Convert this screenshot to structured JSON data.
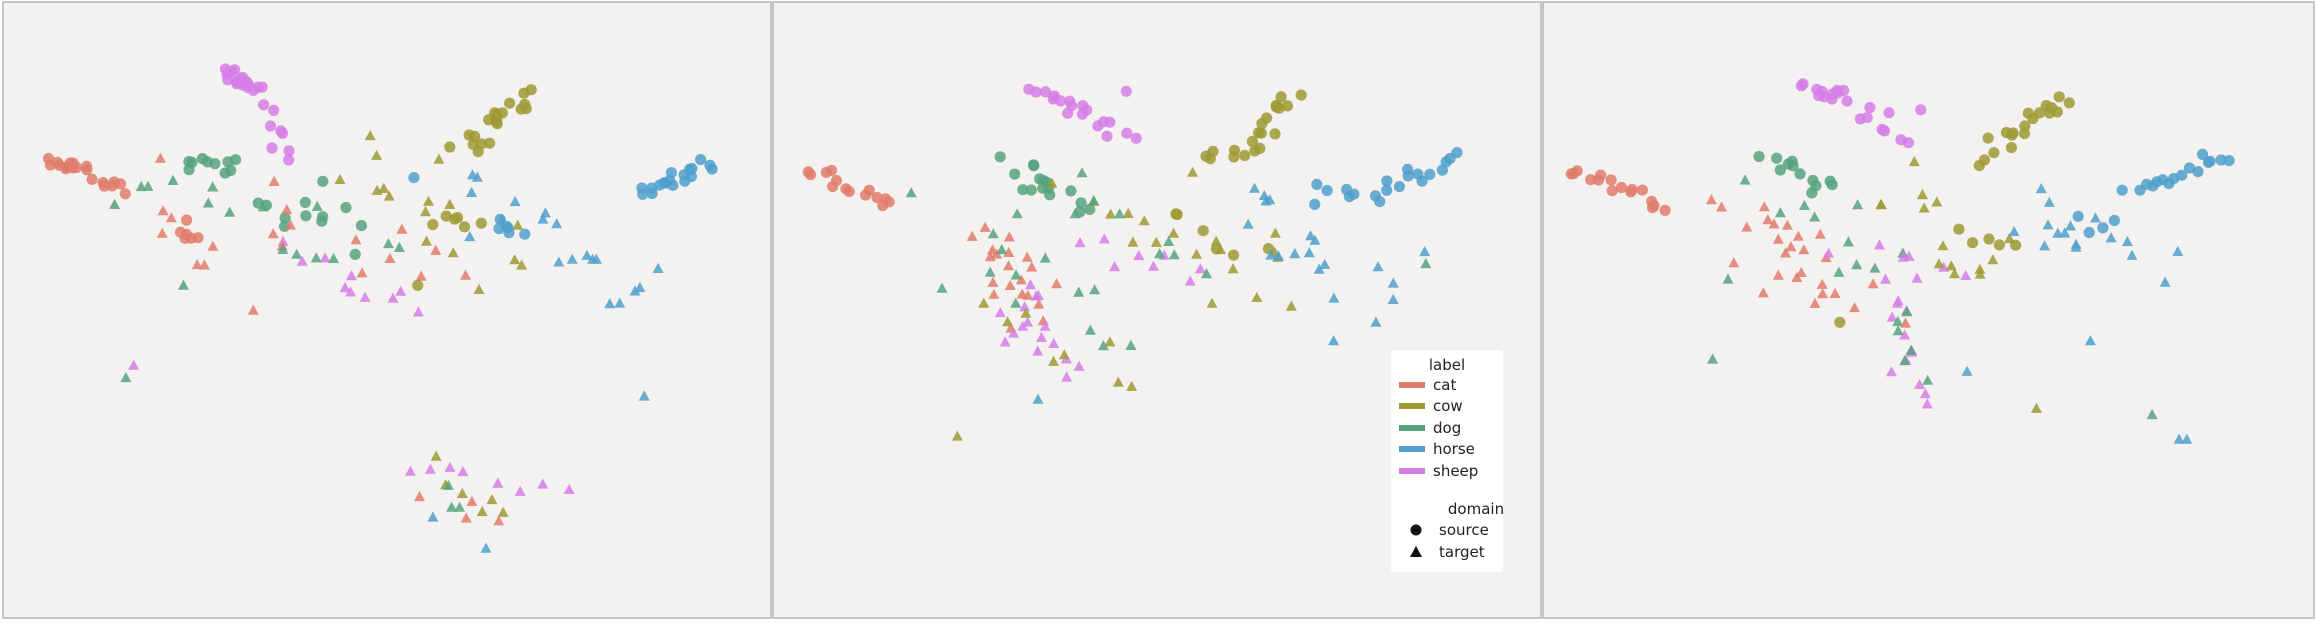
{
  "chart_data": [
    {
      "type": "scatter",
      "title": "",
      "xlabel": "",
      "ylabel": "",
      "grid": false,
      "axes_visible": false,
      "clusters": [
        {
          "label": "sheep",
          "domain": "source",
          "start": [
            0.285,
            0.115
          ],
          "end": [
            0.325,
            0.135
          ],
          "n": 16,
          "spread": 0.006
        },
        {
          "label": "sheep",
          "domain": "source",
          "start": [
            0.33,
            0.14
          ],
          "end": [
            0.375,
            0.26
          ],
          "n": 10,
          "spread": 0.008
        },
        {
          "label": "cat",
          "domain": "source",
          "start": [
            0.06,
            0.255
          ],
          "end": [
            0.1,
            0.27
          ],
          "n": 10,
          "spread": 0.005
        },
        {
          "label": "cat",
          "domain": "source",
          "start": [
            0.1,
            0.275
          ],
          "end": [
            0.16,
            0.3
          ],
          "n": 10,
          "spread": 0.006
        },
        {
          "label": "cat",
          "domain": "source",
          "start": [
            0.23,
            0.37
          ],
          "end": [
            0.265,
            0.38
          ],
          "n": 6,
          "spread": 0.01
        },
        {
          "label": "dog",
          "domain": "source",
          "start": [
            0.25,
            0.255
          ],
          "end": [
            0.3,
            0.275
          ],
          "n": 10,
          "spread": 0.01
        },
        {
          "label": "dog",
          "domain": "source",
          "start": [
            0.34,
            0.34
          ],
          "end": [
            0.4,
            0.35
          ],
          "n": 6,
          "spread": 0.012
        },
        {
          "label": "dog",
          "domain": "source",
          "start": [
            0.4,
            0.3
          ],
          "end": [
            0.45,
            0.4
          ],
          "n": 6,
          "spread": 0.02
        },
        {
          "label": "cow",
          "domain": "source",
          "start": [
            0.6,
            0.24
          ],
          "end": [
            0.685,
            0.15
          ],
          "n": 20,
          "spread": 0.01
        },
        {
          "label": "cow",
          "domain": "source",
          "start": [
            0.57,
            0.35
          ],
          "end": [
            0.62,
            0.36
          ],
          "n": 6,
          "spread": 0.01
        },
        {
          "label": "horse",
          "domain": "source",
          "start": [
            0.83,
            0.31
          ],
          "end": [
            0.92,
            0.265
          ],
          "n": 18,
          "spread": 0.006
        },
        {
          "label": "horse",
          "domain": "source",
          "start": [
            0.64,
            0.36
          ],
          "end": [
            0.68,
            0.37
          ],
          "n": 6,
          "spread": 0.01
        },
        {
          "label": "sheep",
          "domain": "target",
          "start": [
            0.35,
            0.4
          ],
          "end": [
            0.55,
            0.5
          ],
          "n": 10,
          "spread": 0.02
        },
        {
          "label": "cat",
          "domain": "target",
          "start": [
            0.19,
            0.3
          ],
          "end": [
            0.3,
            0.46
          ],
          "n": 8,
          "spread": 0.03
        },
        {
          "label": "cat",
          "domain": "target",
          "start": [
            0.33,
            0.35
          ],
          "end": [
            0.6,
            0.45
          ],
          "n": 12,
          "spread": 0.03
        },
        {
          "label": "dog",
          "domain": "target",
          "start": [
            0.17,
            0.3
          ],
          "end": [
            0.5,
            0.4
          ],
          "n": 14,
          "spread": 0.03
        },
        {
          "label": "cow",
          "domain": "target",
          "start": [
            0.46,
            0.25
          ],
          "end": [
            0.67,
            0.45
          ],
          "n": 16,
          "spread": 0.03
        },
        {
          "label": "horse",
          "domain": "target",
          "start": [
            0.62,
            0.3
          ],
          "end": [
            0.83,
            0.46
          ],
          "n": 18,
          "spread": 0.03
        },
        {
          "label": "sheep",
          "domain": "target",
          "start": [
            0.54,
            0.76
          ],
          "end": [
            0.72,
            0.78
          ],
          "n": 8,
          "spread": 0.012
        },
        {
          "label": "cow",
          "domain": "target",
          "start": [
            0.55,
            0.74
          ],
          "end": [
            0.67,
            0.86
          ],
          "n": 6,
          "spread": 0.012
        },
        {
          "label": "cat",
          "domain": "target",
          "start": [
            0.56,
            0.8
          ],
          "end": [
            0.65,
            0.85
          ],
          "n": 4,
          "spread": 0.012
        },
        {
          "label": "horse",
          "domain": "target",
          "start": [
            0.56,
            0.84
          ],
          "end": [
            0.62,
            0.86
          ],
          "n": 2,
          "spread": 0.01
        },
        {
          "label": "dog",
          "domain": "target",
          "start": [
            0.57,
            0.79
          ],
          "end": [
            0.59,
            0.81
          ],
          "n": 3,
          "spread": 0.01
        }
      ],
      "points": [
        {
          "label": "sheep",
          "domain": "target",
          "x": 0.17,
          "y": 0.59
        },
        {
          "label": "dog",
          "domain": "target",
          "x": 0.16,
          "y": 0.61
        },
        {
          "label": "horse",
          "domain": "target",
          "x": 0.835,
          "y": 0.64
        },
        {
          "label": "dog",
          "domain": "target",
          "x": 0.18,
          "y": 0.3
        },
        {
          "label": "dog",
          "domain": "target",
          "x": 0.235,
          "y": 0.46
        },
        {
          "label": "horse",
          "domain": "target",
          "x": 0.79,
          "y": 0.49
        },
        {
          "label": "horse",
          "domain": "source",
          "x": 0.535,
          "y": 0.285
        },
        {
          "label": "cow",
          "domain": "source",
          "x": 0.54,
          "y": 0.46
        }
      ]
    },
    {
      "type": "scatter",
      "title": "",
      "xlabel": "",
      "ylabel": "",
      "grid": false,
      "axes_visible": false,
      "clusters": [
        {
          "label": "sheep",
          "domain": "source",
          "start": [
            0.34,
            0.145
          ],
          "end": [
            0.4,
            0.175
          ],
          "n": 10,
          "spread": 0.006
        },
        {
          "label": "sheep",
          "domain": "source",
          "start": [
            0.4,
            0.18
          ],
          "end": [
            0.46,
            0.22
          ],
          "n": 8,
          "spread": 0.008
        },
        {
          "label": "cat",
          "domain": "source",
          "start": [
            0.05,
            0.27
          ],
          "end": [
            0.15,
            0.33
          ],
          "n": 14,
          "spread": 0.005
        },
        {
          "label": "dog",
          "domain": "source",
          "start": [
            0.3,
            0.27
          ],
          "end": [
            0.38,
            0.3
          ],
          "n": 10,
          "spread": 0.012
        },
        {
          "label": "dog",
          "domain": "source",
          "start": [
            0.34,
            0.3
          ],
          "end": [
            0.4,
            0.34
          ],
          "n": 6,
          "spread": 0.015
        },
        {
          "label": "cow",
          "domain": "source",
          "start": [
            0.63,
            0.24
          ],
          "end": [
            0.68,
            0.15
          ],
          "n": 14,
          "spread": 0.008
        },
        {
          "label": "cow",
          "domain": "source",
          "start": [
            0.56,
            0.25
          ],
          "end": [
            0.62,
            0.25
          ],
          "n": 6,
          "spread": 0.008
        },
        {
          "label": "cow",
          "domain": "source",
          "start": [
            0.52,
            0.34
          ],
          "end": [
            0.62,
            0.4
          ],
          "n": 6,
          "spread": 0.012
        },
        {
          "label": "horse",
          "domain": "source",
          "start": [
            0.78,
            0.315
          ],
          "end": [
            0.89,
            0.255
          ],
          "n": 14,
          "spread": 0.006
        },
        {
          "label": "horse",
          "domain": "source",
          "start": [
            0.7,
            0.31
          ],
          "end": [
            0.77,
            0.32
          ],
          "n": 6,
          "spread": 0.01
        },
        {
          "label": "cat",
          "domain": "target",
          "start": [
            0.28,
            0.38
          ],
          "end": [
            0.36,
            0.5
          ],
          "n": 20,
          "spread": 0.025
        },
        {
          "label": "dog",
          "domain": "target",
          "start": [
            0.28,
            0.38
          ],
          "end": [
            0.42,
            0.55
          ],
          "n": 12,
          "spread": 0.025
        },
        {
          "label": "sheep",
          "domain": "target",
          "start": [
            0.3,
            0.48
          ],
          "end": [
            0.38,
            0.58
          ],
          "n": 16,
          "spread": 0.02
        },
        {
          "label": "cow",
          "domain": "target",
          "start": [
            0.28,
            0.5
          ],
          "end": [
            0.45,
            0.6
          ],
          "n": 8,
          "spread": 0.02
        },
        {
          "label": "cow",
          "domain": "target",
          "start": [
            0.42,
            0.32
          ],
          "end": [
            0.66,
            0.45
          ],
          "n": 18,
          "spread": 0.03
        },
        {
          "label": "horse",
          "domain": "target",
          "start": [
            0.6,
            0.32
          ],
          "end": [
            0.8,
            0.47
          ],
          "n": 18,
          "spread": 0.03
        },
        {
          "label": "sheep",
          "domain": "target",
          "start": [
            0.4,
            0.38
          ],
          "end": [
            0.55,
            0.45
          ],
          "n": 8,
          "spread": 0.02
        },
        {
          "label": "dog",
          "domain": "target",
          "start": [
            0.4,
            0.33
          ],
          "end": [
            0.56,
            0.42
          ],
          "n": 8,
          "spread": 0.025
        }
      ],
      "points": [
        {
          "label": "sheep",
          "domain": "source",
          "x": 0.46,
          "y": 0.145
        },
        {
          "label": "dog",
          "domain": "target",
          "x": 0.18,
          "y": 0.31
        },
        {
          "label": "dog",
          "domain": "target",
          "x": 0.22,
          "y": 0.465
        },
        {
          "label": "cow",
          "domain": "target",
          "x": 0.24,
          "y": 0.705
        },
        {
          "label": "horse",
          "domain": "target",
          "x": 0.345,
          "y": 0.645
        },
        {
          "label": "horse",
          "domain": "target",
          "x": 0.73,
          "y": 0.55
        },
        {
          "label": "horse",
          "domain": "target",
          "x": 0.785,
          "y": 0.52
        },
        {
          "label": "dog",
          "domain": "target",
          "x": 0.85,
          "y": 0.425
        },
        {
          "label": "cow",
          "domain": "target",
          "x": 0.63,
          "y": 0.48
        }
      ],
      "legend": {
        "placement": "lower-right",
        "label_title": "label",
        "labels": [
          "cat",
          "cow",
          "dog",
          "horse",
          "sheep"
        ],
        "domain_title": "domain",
        "domains": [
          {
            "name": "source",
            "marker": "circle"
          },
          {
            "name": "target",
            "marker": "triangle"
          }
        ]
      }
    },
    {
      "type": "scatter",
      "title": "",
      "xlabel": "",
      "ylabel": "",
      "grid": false,
      "axes_visible": false,
      "clusters": [
        {
          "label": "sheep",
          "domain": "source",
          "start": [
            0.34,
            0.135
          ],
          "end": [
            0.4,
            0.16
          ],
          "n": 12,
          "spread": 0.005
        },
        {
          "label": "sheep",
          "domain": "source",
          "start": [
            0.4,
            0.17
          ],
          "end": [
            0.46,
            0.22
          ],
          "n": 8,
          "spread": 0.008
        },
        {
          "label": "cat",
          "domain": "source",
          "start": [
            0.04,
            0.27
          ],
          "end": [
            0.16,
            0.33
          ],
          "n": 16,
          "spread": 0.005
        },
        {
          "label": "dog",
          "domain": "source",
          "start": [
            0.29,
            0.26
          ],
          "end": [
            0.38,
            0.3
          ],
          "n": 12,
          "spread": 0.01
        },
        {
          "label": "cow",
          "domain": "source",
          "start": [
            0.6,
            0.22
          ],
          "end": [
            0.68,
            0.15
          ],
          "n": 14,
          "spread": 0.008
        },
        {
          "label": "cow",
          "domain": "source",
          "start": [
            0.56,
            0.25
          ],
          "end": [
            0.6,
            0.23
          ],
          "n": 5,
          "spread": 0.01
        },
        {
          "label": "cow",
          "domain": "source",
          "start": [
            0.55,
            0.37
          ],
          "end": [
            0.62,
            0.39
          ],
          "n": 5,
          "spread": 0.01
        },
        {
          "label": "horse",
          "domain": "source",
          "start": [
            0.76,
            0.31
          ],
          "end": [
            0.89,
            0.25
          ],
          "n": 16,
          "spread": 0.006
        },
        {
          "label": "horse",
          "domain": "source",
          "start": [
            0.69,
            0.36
          ],
          "end": [
            0.74,
            0.36
          ],
          "n": 4,
          "spread": 0.01
        },
        {
          "label": "cat",
          "domain": "target",
          "start": [
            0.27,
            0.35
          ],
          "end": [
            0.35,
            0.45
          ],
          "n": 18,
          "spread": 0.025
        },
        {
          "label": "cat",
          "domain": "target",
          "start": [
            0.35,
            0.44
          ],
          "end": [
            0.42,
            0.5
          ],
          "n": 8,
          "spread": 0.02
        },
        {
          "label": "dog",
          "domain": "target",
          "start": [
            0.29,
            0.3
          ],
          "end": [
            0.45,
            0.42
          ],
          "n": 10,
          "spread": 0.025
        },
        {
          "label": "sheep",
          "domain": "target",
          "start": [
            0.46,
            0.44
          ],
          "end": [
            0.48,
            0.66
          ],
          "n": 14,
          "spread": 0.012
        },
        {
          "label": "sheep",
          "domain": "target",
          "start": [
            0.4,
            0.4
          ],
          "end": [
            0.52,
            0.44
          ],
          "n": 6,
          "spread": 0.02
        },
        {
          "label": "cow",
          "domain": "target",
          "start": [
            0.45,
            0.3
          ],
          "end": [
            0.6,
            0.45
          ],
          "n": 14,
          "spread": 0.03
        },
        {
          "label": "horse",
          "domain": "target",
          "start": [
            0.6,
            0.33
          ],
          "end": [
            0.8,
            0.45
          ],
          "n": 16,
          "spread": 0.03
        },
        {
          "label": "dog",
          "domain": "target",
          "start": [
            0.45,
            0.48
          ],
          "end": [
            0.5,
            0.62
          ],
          "n": 6,
          "spread": 0.015
        }
      ],
      "points": [
        {
          "label": "sheep",
          "domain": "source",
          "x": 0.49,
          "y": 0.175
        },
        {
          "label": "dog",
          "domain": "target",
          "x": 0.24,
          "y": 0.45
        },
        {
          "label": "dog",
          "domain": "target",
          "x": 0.22,
          "y": 0.58
        },
        {
          "label": "cow",
          "domain": "source",
          "x": 0.385,
          "y": 0.52
        },
        {
          "label": "cow",
          "domain": "target",
          "x": 0.64,
          "y": 0.66
        },
        {
          "label": "horse",
          "domain": "target",
          "x": 0.55,
          "y": 0.6
        },
        {
          "label": "horse",
          "domain": "target",
          "x": 0.71,
          "y": 0.55
        },
        {
          "label": "dog",
          "domain": "target",
          "x": 0.79,
          "y": 0.67
        },
        {
          "label": "horse",
          "domain": "target",
          "x": 0.825,
          "y": 0.71
        },
        {
          "label": "horse",
          "domain": "target",
          "x": 0.835,
          "y": 0.71
        }
      ]
    }
  ],
  "colors": {
    "cat": "#e17c6c",
    "cow": "#9e9a34",
    "dog": "#55a37e",
    "horse": "#4fa0cd",
    "sheep": "#d57ee6",
    "background": "#f4f2f1",
    "frame": "#b5b5b5",
    "legend_bg": "#ffffff"
  }
}
